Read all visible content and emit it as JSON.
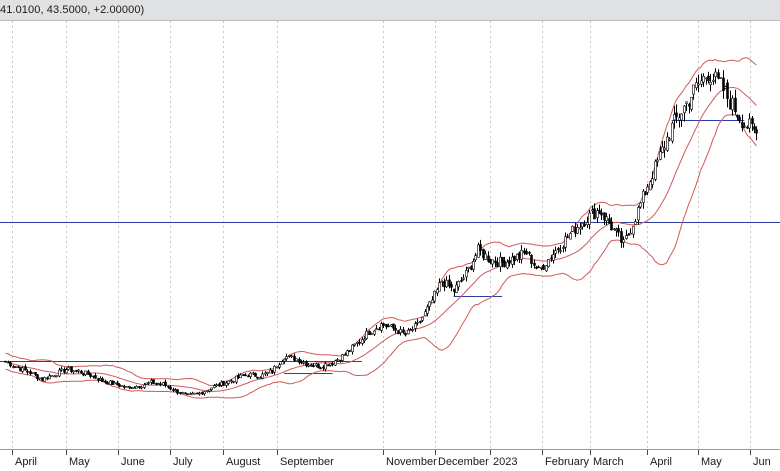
{
  "header": {
    "readout": "41.0100, 43.5000, +2.00000)"
  },
  "colors": {
    "candle": "#000000",
    "band": "#d05a5a",
    "hline": "#2b3ea8",
    "grid": "#c9c9c9",
    "header_bg": "#dfe1e3"
  },
  "chart_data": {
    "type": "candlestick",
    "title": "",
    "xlabel": "",
    "ylabel": "",
    "grid": "vertical dashed at month starts",
    "x_ticks": [
      "April",
      "May",
      "June",
      "July",
      "August",
      "September",
      "November",
      "December",
      "2023",
      "February",
      "March",
      "April",
      "May",
      "Jun"
    ],
    "close_series": [
      {
        "date": "2022-03-28",
        "close": 14.0
      },
      {
        "date": "2022-04-04",
        "close": 13.2
      },
      {
        "date": "2022-04-11",
        "close": 12.6
      },
      {
        "date": "2022-04-18",
        "close": 11.8
      },
      {
        "date": "2022-04-25",
        "close": 12.4
      },
      {
        "date": "2022-05-02",
        "close": 13.0
      },
      {
        "date": "2022-05-09",
        "close": 12.8
      },
      {
        "date": "2022-05-16",
        "close": 12.3
      },
      {
        "date": "2022-05-23",
        "close": 11.6
      },
      {
        "date": "2022-05-30",
        "close": 11.2
      },
      {
        "date": "2022-06-06",
        "close": 10.8
      },
      {
        "date": "2022-06-13",
        "close": 11.0
      },
      {
        "date": "2022-06-20",
        "close": 11.4
      },
      {
        "date": "2022-06-27",
        "close": 11.2
      },
      {
        "date": "2022-07-04",
        "close": 10.4
      },
      {
        "date": "2022-07-11",
        "close": 9.8
      },
      {
        "date": "2022-07-18",
        "close": 10.1
      },
      {
        "date": "2022-07-25",
        "close": 10.8
      },
      {
        "date": "2022-08-01",
        "close": 11.3
      },
      {
        "date": "2022-08-08",
        "close": 11.9
      },
      {
        "date": "2022-08-15",
        "close": 12.4
      },
      {
        "date": "2022-08-22",
        "close": 12.2
      },
      {
        "date": "2022-08-29",
        "close": 12.8
      },
      {
        "date": "2022-09-05",
        "close": 14.6
      },
      {
        "date": "2022-09-12",
        "close": 14.3
      },
      {
        "date": "2022-09-19",
        "close": 13.6
      },
      {
        "date": "2022-09-26",
        "close": 13.4
      },
      {
        "date": "2022-10-03",
        "close": 13.9
      },
      {
        "date": "2022-10-10",
        "close": 14.8
      },
      {
        "date": "2022-10-17",
        "close": 16.2
      },
      {
        "date": "2022-10-24",
        "close": 17.6
      },
      {
        "date": "2022-10-31",
        "close": 18.5
      },
      {
        "date": "2022-11-07",
        "close": 18.0
      },
      {
        "date": "2022-11-14",
        "close": 17.2
      },
      {
        "date": "2022-11-21",
        "close": 18.4
      },
      {
        "date": "2022-11-28",
        "close": 20.8
      },
      {
        "date": "2022-12-05",
        "close": 23.8
      },
      {
        "date": "2022-12-12",
        "close": 22.6
      },
      {
        "date": "2022-12-19",
        "close": 24.6
      },
      {
        "date": "2022-12-26",
        "close": 27.5
      },
      {
        "date": "2023-01-02",
        "close": 26.4
      },
      {
        "date": "2023-01-09",
        "close": 26.0
      },
      {
        "date": "2023-01-16",
        "close": 26.6
      },
      {
        "date": "2023-01-23",
        "close": 27.2
      },
      {
        "date": "2023-01-30",
        "close": 25.0
      },
      {
        "date": "2023-02-06",
        "close": 26.8
      },
      {
        "date": "2023-02-13",
        "close": 28.5
      },
      {
        "date": "2023-02-20",
        "close": 30.2
      },
      {
        "date": "2023-02-27",
        "close": 31.5
      },
      {
        "date": "2023-03-06",
        "close": 32.5
      },
      {
        "date": "2023-03-13",
        "close": 30.4
      },
      {
        "date": "2023-03-20",
        "close": 28.2
      },
      {
        "date": "2023-03-27",
        "close": 31.6
      },
      {
        "date": "2023-04-03",
        "close": 35.5
      },
      {
        "date": "2023-04-10",
        "close": 39.0
      },
      {
        "date": "2023-04-17",
        "close": 42.6
      },
      {
        "date": "2023-04-24",
        "close": 45.0
      },
      {
        "date": "2023-05-01",
        "close": 47.4
      },
      {
        "date": "2023-05-08",
        "close": 49.2
      },
      {
        "date": "2023-05-15",
        "close": 47.6
      },
      {
        "date": "2023-05-22",
        "close": 45.2
      },
      {
        "date": "2023-05-29",
        "close": 43.0
      },
      {
        "date": "2023-06-05",
        "close": 41.8
      }
    ],
    "horizontal_lines": [
      {
        "label": "",
        "value": 31.0
      },
      {
        "label": "",
        "value": 14.0
      }
    ]
  }
}
